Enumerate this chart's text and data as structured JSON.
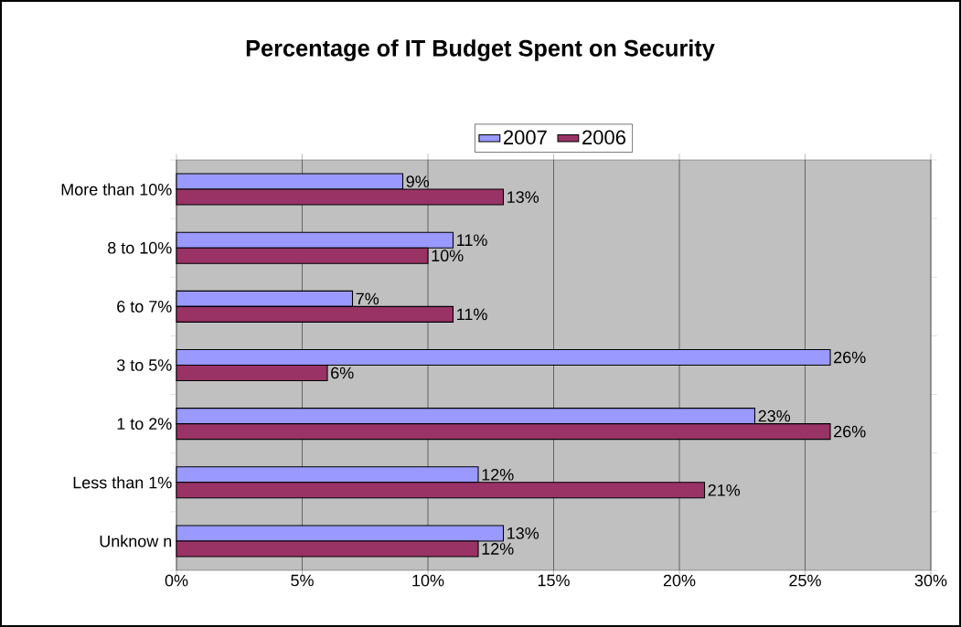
{
  "chart_data": {
    "type": "bar",
    "orientation": "horizontal",
    "title": "Percentage of IT Budget Spent on Security",
    "categories": [
      "More than 10%",
      "8 to 10%",
      "6 to 7%",
      "3 to 5%",
      "1 to 2%",
      "Less than 1%",
      "Unknow n"
    ],
    "series": [
      {
        "name": "2007",
        "color": "#9999ff",
        "values": [
          9,
          11,
          7,
          26,
          23,
          12,
          13
        ],
        "value_labels": [
          "9%",
          "11%",
          "7%",
          "26%",
          "23%",
          "12%",
          "13%"
        ]
      },
      {
        "name": "2006",
        "color": "#993366",
        "values": [
          13,
          10,
          11,
          6,
          26,
          21,
          12
        ],
        "value_labels": [
          "13%",
          "10%",
          "11%",
          "6%",
          "26%",
          "21%",
          "12%"
        ]
      }
    ],
    "xlim": [
      0,
      30
    ],
    "xticks": [
      {
        "value": 0,
        "label": "0%"
      },
      {
        "value": 5,
        "label": "5%"
      },
      {
        "value": 10,
        "label": "10%"
      },
      {
        "value": 15,
        "label": "15%"
      },
      {
        "value": 20,
        "label": "20%"
      },
      {
        "value": 25,
        "label": "25%"
      },
      {
        "value": 30,
        "label": "30%"
      }
    ],
    "grid": "x",
    "legend": "top"
  }
}
